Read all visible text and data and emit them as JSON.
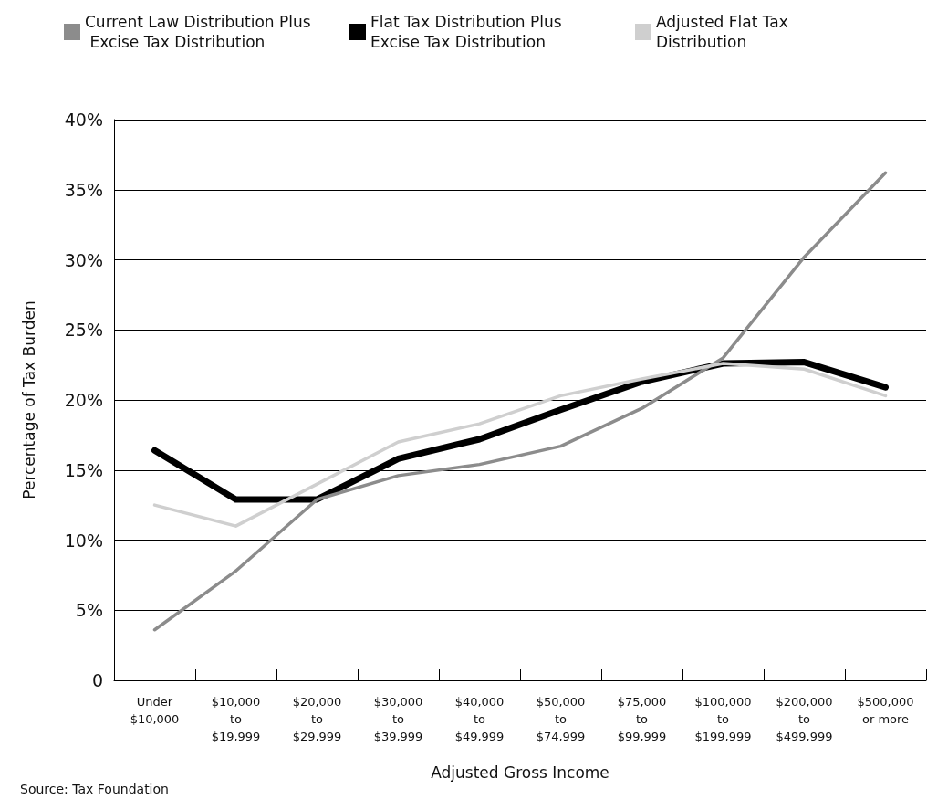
{
  "chart_data": {
    "type": "line",
    "xlabel": "Adjusted Gross Income",
    "ylabel": "Percentage of Tax Burden",
    "annotations": [
      "Source: Tax Foundation"
    ],
    "categories": [
      "Under $10,000",
      "$10,000 to $19,999",
      "$20,000 to $29,999",
      "$30,000 to $39,999",
      "$40,000 to $49,999",
      "$50,000 to $74,999",
      "$75,000 to $99,999",
      "$100,000 to $199,999",
      "$200,000 to $499,999",
      "$500,000 or more"
    ],
    "series": [
      {
        "name": "Current Law Distribution Plus Excise Tax Distribution",
        "color": "#8c8c8c",
        "values": [
          3.6,
          7.8,
          12.9,
          14.6,
          15.4,
          16.7,
          19.4,
          23.0,
          30.2,
          36.2
        ]
      },
      {
        "name": "Flat Tax Distribution Plus Excise Tax Distribution",
        "color": "#000000",
        "values": [
          16.4,
          12.9,
          12.9,
          15.8,
          17.2,
          19.3,
          21.3,
          22.6,
          22.7,
          20.9
        ]
      },
      {
        "name": "Adjusted Flat Tax Distribution",
        "color": "#cfcfcf",
        "values": [
          12.5,
          11.0,
          14.0,
          17.0,
          18.3,
          20.3,
          21.5,
          22.6,
          22.2,
          20.3
        ]
      }
    ],
    "ylim": [
      0,
      40
    ],
    "yticks": [
      {
        "value": 0,
        "label": "0"
      },
      {
        "value": 5,
        "label": "5%"
      },
      {
        "value": 10,
        "label": "10%"
      },
      {
        "value": 15,
        "label": "15%"
      },
      {
        "value": 20,
        "label": "20%"
      },
      {
        "value": 25,
        "label": "25%"
      },
      {
        "value": 30,
        "label": "30%"
      },
      {
        "value": 35,
        "label": "35%"
      },
      {
        "value": 40,
        "label": "40%"
      }
    ],
    "grid": "y",
    "legend": "top",
    "marker": "none",
    "line_style": "solid"
  }
}
